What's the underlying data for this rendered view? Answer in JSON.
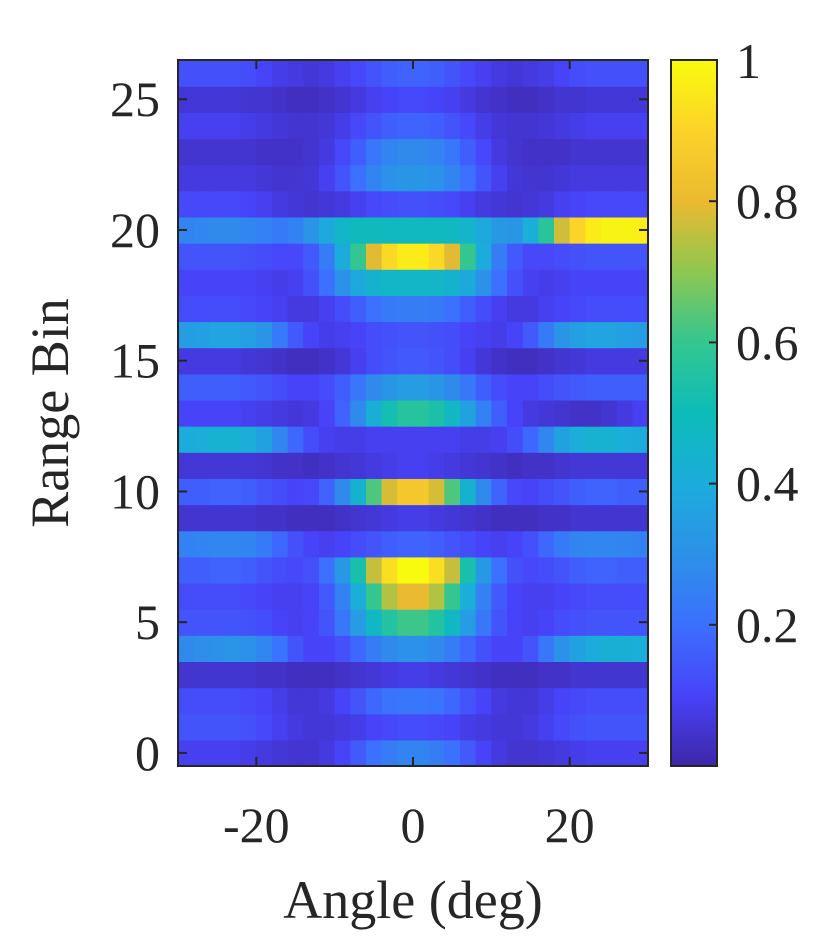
{
  "chart_data": {
    "type": "heatmap",
    "title": "",
    "xlabel": "Angle (deg)",
    "ylabel": "Range Bin",
    "xlim": [
      -30,
      30
    ],
    "ylim": [
      -0.5,
      26.5
    ],
    "xticks": [
      -20,
      0,
      20
    ],
    "xtick_labels": [
      "-20",
      "0",
      "20"
    ],
    "yticks": [
      0,
      5,
      10,
      15,
      20,
      25
    ],
    "ytick_labels": [
      "0",
      "5",
      "10",
      "15",
      "20",
      "25"
    ],
    "grid": false,
    "colormap": "parula",
    "colorbar": {
      "range": [
        0,
        1
      ],
      "ticks": [
        0.2,
        0.4,
        0.6,
        0.8,
        1
      ],
      "tick_labels": [
        "0.2",
        "0.4",
        "0.6",
        "0.8",
        "1"
      ]
    },
    "angle_bins_deg": [
      -29,
      -27,
      -25,
      -23,
      -21,
      -19,
      -17,
      -15,
      -13,
      -11,
      -9,
      -7,
      -5,
      -3,
      -1,
      1,
      3,
      5,
      7,
      9,
      11,
      13,
      15,
      17,
      19,
      21,
      23,
      25,
      27,
      29
    ],
    "range_bins": [
      0,
      1,
      2,
      3,
      4,
      5,
      6,
      7,
      8,
      9,
      10,
      11,
      12,
      13,
      14,
      15,
      16,
      17,
      18,
      19,
      20,
      21,
      22,
      23,
      24,
      25,
      26
    ],
    "profiles": {
      "A": [
        0.07,
        0.07,
        0.07,
        0.07,
        0.06,
        0.05,
        0.04,
        0.03,
        0.03,
        0.04,
        0.06,
        0.09,
        0.12,
        0.14,
        0.15,
        0.15,
        0.14,
        0.12,
        0.09,
        0.06,
        0.04,
        0.03,
        0.03,
        0.04,
        0.05,
        0.06,
        0.07,
        0.07,
        0.07,
        0.07
      ],
      "B": [
        0.18,
        0.18,
        0.19,
        0.19,
        0.18,
        0.16,
        0.13,
        0.1,
        0.09,
        0.12,
        0.18,
        0.26,
        0.33,
        0.38,
        0.4,
        0.4,
        0.38,
        0.33,
        0.26,
        0.18,
        0.12,
        0.09,
        0.1,
        0.13,
        0.16,
        0.18,
        0.19,
        0.19,
        0.18,
        0.18
      ],
      "C": [
        0.28,
        0.29,
        0.3,
        0.3,
        0.28,
        0.24,
        0.17,
        0.1,
        0.07,
        0.05,
        0.05,
        0.05,
        0.06,
        0.06,
        0.06,
        0.06,
        0.06,
        0.06,
        0.05,
        0.05,
        0.05,
        0.07,
        0.1,
        0.17,
        0.24,
        0.28,
        0.3,
        0.3,
        0.29,
        0.28
      ]
    },
    "intensity_rows": [
      [
        0.09,
        0.09,
        0.09,
        0.09,
        0.08,
        0.07,
        0.06,
        0.05,
        0.05,
        0.07,
        0.1,
        0.15,
        0.2,
        0.24,
        0.26,
        0.26,
        0.24,
        0.2,
        0.15,
        0.1,
        0.07,
        0.05,
        0.05,
        0.06,
        0.07,
        0.08,
        0.09,
        0.09,
        0.09,
        0.09
      ],
      [
        0.14,
        0.14,
        0.14,
        0.14,
        0.13,
        0.11,
        0.09,
        0.07,
        0.06,
        0.06,
        0.07,
        0.08,
        0.1,
        0.11,
        0.12,
        0.12,
        0.11,
        0.1,
        0.08,
        0.07,
        0.06,
        0.06,
        0.07,
        0.09,
        0.11,
        0.13,
        0.14,
        0.14,
        0.14,
        0.14
      ],
      [
        0.12,
        0.12,
        0.12,
        0.12,
        0.11,
        0.1,
        0.08,
        0.06,
        0.06,
        0.07,
        0.1,
        0.14,
        0.18,
        0.21,
        0.22,
        0.22,
        0.21,
        0.18,
        0.14,
        0.1,
        0.07,
        0.06,
        0.06,
        0.08,
        0.1,
        0.11,
        0.12,
        0.12,
        0.12,
        0.12
      ],
      [
        0.05,
        0.05,
        0.05,
        0.05,
        0.05,
        0.04,
        0.04,
        0.03,
        0.03,
        0.03,
        0.04,
        0.05,
        0.06,
        0.07,
        0.08,
        0.08,
        0.07,
        0.06,
        0.05,
        0.04,
        0.03,
        0.03,
        0.03,
        0.04,
        0.04,
        0.05,
        0.05,
        0.05,
        0.05,
        0.05
      ],
      [
        0.28,
        0.29,
        0.3,
        0.31,
        0.3,
        0.27,
        0.21,
        0.14,
        0.1,
        0.1,
        0.13,
        0.18,
        0.24,
        0.28,
        0.3,
        0.3,
        0.28,
        0.24,
        0.18,
        0.13,
        0.1,
        0.1,
        0.14,
        0.22,
        0.3,
        0.36,
        0.4,
        0.42,
        0.42,
        0.41
      ],
      [
        0.14,
        0.14,
        0.14,
        0.14,
        0.13,
        0.12,
        0.1,
        0.09,
        0.1,
        0.14,
        0.22,
        0.34,
        0.47,
        0.56,
        0.61,
        0.61,
        0.56,
        0.47,
        0.34,
        0.22,
        0.14,
        0.1,
        0.09,
        0.1,
        0.12,
        0.13,
        0.14,
        0.14,
        0.14,
        0.14
      ],
      [
        0.12,
        0.12,
        0.12,
        0.12,
        0.11,
        0.1,
        0.09,
        0.09,
        0.1,
        0.15,
        0.25,
        0.41,
        0.6,
        0.74,
        0.8,
        0.8,
        0.74,
        0.6,
        0.41,
        0.25,
        0.15,
        0.1,
        0.09,
        0.09,
        0.1,
        0.11,
        0.12,
        0.12,
        0.12,
        0.12
      ],
      [
        0.16,
        0.16,
        0.17,
        0.17,
        0.16,
        0.14,
        0.12,
        0.11,
        0.13,
        0.2,
        0.33,
        0.53,
        0.76,
        0.93,
        1.0,
        1.0,
        0.93,
        0.76,
        0.53,
        0.33,
        0.2,
        0.13,
        0.11,
        0.12,
        0.14,
        0.16,
        0.17,
        0.17,
        0.16,
        0.16
      ],
      [
        0.25,
        0.26,
        0.27,
        0.27,
        0.26,
        0.23,
        0.18,
        0.13,
        0.1,
        0.09,
        0.1,
        0.12,
        0.14,
        0.16,
        0.17,
        0.17,
        0.16,
        0.14,
        0.12,
        0.1,
        0.09,
        0.1,
        0.13,
        0.18,
        0.23,
        0.26,
        0.27,
        0.27,
        0.26,
        0.25
      ],
      [
        0.05,
        0.05,
        0.05,
        0.05,
        0.05,
        0.04,
        0.04,
        0.03,
        0.03,
        0.03,
        0.04,
        0.05,
        0.06,
        0.07,
        0.08,
        0.08,
        0.07,
        0.06,
        0.05,
        0.04,
        0.03,
        0.03,
        0.03,
        0.04,
        0.04,
        0.05,
        0.05,
        0.05,
        0.05,
        0.05
      ],
      [
        0.16,
        0.16,
        0.17,
        0.17,
        0.16,
        0.14,
        0.12,
        0.1,
        0.11,
        0.17,
        0.28,
        0.44,
        0.63,
        0.78,
        0.85,
        0.85,
        0.78,
        0.63,
        0.44,
        0.28,
        0.17,
        0.11,
        0.1,
        0.12,
        0.14,
        0.16,
        0.17,
        0.17,
        0.16,
        0.16
      ],
      [
        0.06,
        0.06,
        0.06,
        0.06,
        0.06,
        0.05,
        0.04,
        0.04,
        0.03,
        0.04,
        0.05,
        0.06,
        0.07,
        0.08,
        0.09,
        0.09,
        0.08,
        0.07,
        0.06,
        0.05,
        0.04,
        0.03,
        0.04,
        0.04,
        0.05,
        0.06,
        0.06,
        0.06,
        0.06,
        0.06
      ],
      [
        0.4,
        0.41,
        0.43,
        0.43,
        0.41,
        0.36,
        0.27,
        0.18,
        0.12,
        0.09,
        0.08,
        0.08,
        0.09,
        0.09,
        0.09,
        0.09,
        0.09,
        0.09,
        0.08,
        0.08,
        0.09,
        0.12,
        0.18,
        0.27,
        0.36,
        0.41,
        0.43,
        0.43,
        0.41,
        0.4
      ],
      [
        0.1,
        0.1,
        0.1,
        0.1,
        0.09,
        0.08,
        0.07,
        0.06,
        0.07,
        0.1,
        0.17,
        0.28,
        0.42,
        0.52,
        0.57,
        0.57,
        0.54,
        0.47,
        0.36,
        0.25,
        0.16,
        0.1,
        0.07,
        0.06,
        0.05,
        0.04,
        0.04,
        0.05,
        0.07,
        0.09
      ],
      [
        0.16,
        0.16,
        0.16,
        0.16,
        0.15,
        0.14,
        0.12,
        0.1,
        0.1,
        0.12,
        0.16,
        0.22,
        0.28,
        0.32,
        0.34,
        0.34,
        0.32,
        0.28,
        0.22,
        0.16,
        0.12,
        0.1,
        0.1,
        0.12,
        0.14,
        0.15,
        0.16,
        0.16,
        0.16,
        0.16
      ],
      [
        0.07,
        0.07,
        0.07,
        0.07,
        0.06,
        0.05,
        0.04,
        0.03,
        0.03,
        0.04,
        0.06,
        0.09,
        0.12,
        0.14,
        0.15,
        0.15,
        0.14,
        0.12,
        0.09,
        0.06,
        0.04,
        0.03,
        0.03,
        0.04,
        0.05,
        0.06,
        0.07,
        0.07,
        0.07,
        0.07
      ],
      [
        0.34,
        0.35,
        0.37,
        0.37,
        0.35,
        0.31,
        0.23,
        0.15,
        0.1,
        0.08,
        0.09,
        0.1,
        0.12,
        0.13,
        0.14,
        0.14,
        0.13,
        0.12,
        0.1,
        0.09,
        0.08,
        0.1,
        0.15,
        0.23,
        0.31,
        0.35,
        0.37,
        0.37,
        0.35,
        0.34
      ],
      [
        0.12,
        0.12,
        0.12,
        0.12,
        0.11,
        0.1,
        0.09,
        0.07,
        0.07,
        0.09,
        0.12,
        0.16,
        0.2,
        0.23,
        0.24,
        0.24,
        0.23,
        0.2,
        0.16,
        0.12,
        0.09,
        0.07,
        0.07,
        0.09,
        0.1,
        0.11,
        0.12,
        0.12,
        0.12,
        0.12
      ],
      [
        0.1,
        0.1,
        0.1,
        0.1,
        0.1,
        0.09,
        0.08,
        0.09,
        0.13,
        0.2,
        0.3,
        0.39,
        0.44,
        0.46,
        0.46,
        0.46,
        0.46,
        0.44,
        0.39,
        0.3,
        0.2,
        0.13,
        0.09,
        0.08,
        0.09,
        0.1,
        0.1,
        0.1,
        0.1,
        0.1
      ],
      [
        0.14,
        0.14,
        0.14,
        0.14,
        0.13,
        0.12,
        0.11,
        0.11,
        0.15,
        0.24,
        0.4,
        0.6,
        0.79,
        0.91,
        0.96,
        0.96,
        0.91,
        0.79,
        0.6,
        0.4,
        0.24,
        0.15,
        0.11,
        0.11,
        0.12,
        0.13,
        0.14,
        0.14,
        0.14,
        0.14
      ],
      [
        0.26,
        0.27,
        0.28,
        0.28,
        0.27,
        0.25,
        0.23,
        0.25,
        0.31,
        0.39,
        0.46,
        0.49,
        0.49,
        0.48,
        0.48,
        0.48,
        0.48,
        0.48,
        0.45,
        0.39,
        0.33,
        0.32,
        0.41,
        0.58,
        0.77,
        0.9,
        0.96,
        0.98,
        0.98,
        0.97
      ],
      [
        0.11,
        0.11,
        0.11,
        0.11,
        0.1,
        0.09,
        0.07,
        0.06,
        0.05,
        0.06,
        0.07,
        0.09,
        0.11,
        0.12,
        0.13,
        0.13,
        0.12,
        0.11,
        0.09,
        0.07,
        0.06,
        0.05,
        0.06,
        0.07,
        0.09,
        0.1,
        0.11,
        0.11,
        0.11,
        0.11
      ],
      [
        0.07,
        0.07,
        0.07,
        0.07,
        0.07,
        0.06,
        0.05,
        0.05,
        0.06,
        0.09,
        0.14,
        0.2,
        0.26,
        0.3,
        0.32,
        0.32,
        0.3,
        0.26,
        0.2,
        0.14,
        0.09,
        0.06,
        0.05,
        0.05,
        0.06,
        0.07,
        0.07,
        0.07,
        0.07,
        0.07
      ],
      [
        0.05,
        0.05,
        0.05,
        0.05,
        0.05,
        0.04,
        0.04,
        0.04,
        0.05,
        0.07,
        0.11,
        0.16,
        0.22,
        0.26,
        0.28,
        0.28,
        0.26,
        0.22,
        0.16,
        0.11,
        0.07,
        0.05,
        0.04,
        0.04,
        0.04,
        0.05,
        0.05,
        0.05,
        0.05,
        0.05
      ],
      [
        0.09,
        0.09,
        0.09,
        0.09,
        0.08,
        0.07,
        0.06,
        0.05,
        0.05,
        0.06,
        0.08,
        0.11,
        0.14,
        0.16,
        0.17,
        0.17,
        0.16,
        0.14,
        0.11,
        0.08,
        0.06,
        0.05,
        0.05,
        0.06,
        0.07,
        0.08,
        0.09,
        0.09,
        0.09,
        0.09
      ],
      [
        0.06,
        0.06,
        0.06,
        0.06,
        0.05,
        0.05,
        0.04,
        0.03,
        0.03,
        0.04,
        0.05,
        0.07,
        0.09,
        0.1,
        0.11,
        0.11,
        0.1,
        0.09,
        0.07,
        0.05,
        0.04,
        0.03,
        0.03,
        0.04,
        0.05,
        0.05,
        0.06,
        0.06,
        0.06,
        0.06
      ],
      [
        0.13,
        0.13,
        0.13,
        0.13,
        0.12,
        0.1,
        0.08,
        0.07,
        0.06,
        0.07,
        0.09,
        0.11,
        0.14,
        0.16,
        0.17,
        0.17,
        0.16,
        0.14,
        0.11,
        0.09,
        0.07,
        0.06,
        0.07,
        0.08,
        0.1,
        0.12,
        0.13,
        0.13,
        0.13,
        0.13
      ]
    ]
  }
}
